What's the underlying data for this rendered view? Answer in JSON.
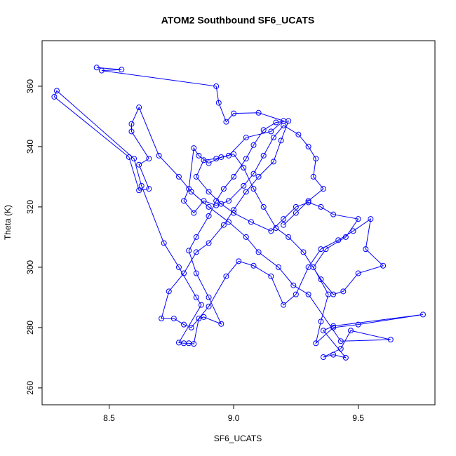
{
  "chart_data": {
    "type": "line",
    "title": "ATOM2 Southbound SF6_UCATS",
    "x_label": "SF6_UCATS",
    "y_label": "Theta (K)",
    "color": "#0000ff",
    "markers": true,
    "xlim": [
      8.231,
      9.808
    ],
    "ylim": [
      254.4,
      375.1
    ],
    "xticks": [
      8.5,
      {
        "value": 9,
        "label": "9.0"
      },
      9.5
    ],
    "yticks": [
      260,
      280,
      300,
      320,
      340,
      360
    ],
    "x": [
      8.45,
      8.55,
      8.47,
      8.93,
      8.94,
      8.97,
      9.0,
      9.1,
      9.2,
      9.15,
      9.05,
      8.98,
      8.93,
      8.88,
      8.85,
      8.9,
      8.95,
      9.0,
      9.07,
      9.15,
      9.2,
      9.25,
      9.3,
      9.35,
      9.4,
      9.5,
      9.45,
      9.37,
      9.32,
      9.38,
      9.35,
      9.33,
      9.4,
      9.5,
      9.76,
      9.4,
      9.36,
      9.45,
      9.4,
      9.36,
      9.43,
      9.47,
      9.63,
      9.43,
      9.3,
      9.24,
      9.18,
      9.1,
      9.05,
      8.98,
      8.9,
      8.83,
      8.78,
      8.7,
      8.62,
      8.59,
      8.59,
      8.66,
      8.62,
      8.66,
      8.62,
      8.58,
      8.28,
      8.29,
      8.6,
      8.63,
      8.72,
      8.78,
      8.85,
      8.87,
      8.78,
      8.8,
      8.82,
      8.84,
      8.86,
      8.88,
      8.95,
      8.9,
      8.85,
      8.82,
      8.85,
      8.9,
      8.93,
      8.96,
      9.0,
      9.05,
      9.08,
      9.12,
      9.17,
      9.22,
      9.19,
      9.16,
      9.1,
      9.05,
      9.0,
      8.96,
      8.9,
      8.85,
      8.8,
      8.74,
      8.71,
      8.76,
      8.8,
      8.83,
      8.9,
      8.97,
      9.02,
      9.08,
      9.15,
      9.2,
      9.25,
      9.3,
      9.35,
      9.42,
      9.48,
      9.55,
      9.53,
      9.6,
      9.5,
      9.44,
      9.4,
      9.35,
      9.28,
      9.22,
      9.17,
      9.12,
      9.08,
      9.04,
      9.0,
      8.95,
      8.9,
      8.86,
      8.84,
      8.82,
      8.8,
      8.84,
      8.88,
      8.93,
      8.98,
      9.04,
      9.08,
      9.12,
      9.16,
      9.2,
      9.26,
      9.3,
      9.33,
      9.32,
      9.36,
      9.3,
      9.25,
      9.2
    ],
    "values": [
      366.2,
      365.5,
      365.2,
      360,
      354.5,
      348.2,
      351,
      351.2,
      348.5,
      345,
      343,
      337,
      336,
      335.5,
      330,
      325,
      321,
      318,
      315,
      312,
      316,
      320,
      321.5,
      320,
      317.5,
      316,
      310,
      306,
      300,
      291,
      282,
      274.8,
      280,
      281,
      284.3,
      280.5,
      279,
      270,
      271,
      270.2,
      273,
      279,
      276,
      275.5,
      291,
      294,
      300,
      305,
      310,
      315,
      320,
      325,
      330,
      337,
      353,
      347.5,
      345,
      336,
      334,
      326,
      325.5,
      336.5,
      356.5,
      358.5,
      336,
      327,
      308,
      300,
      290,
      287.5,
      275,
      274.8,
      274.8,
      274.6,
      283,
      283.5,
      281.2,
      290,
      298,
      305.5,
      310,
      317,
      322,
      326,
      330,
      336,
      340.5,
      345.5,
      348,
      348.5,
      342,
      335,
      330,
      325,
      319,
      314,
      308,
      305,
      298,
      292,
      283,
      283,
      281,
      280,
      287,
      297,
      302,
      300.5,
      297,
      287.5,
      291,
      300,
      306,
      309,
      312,
      316,
      306,
      300.5,
      298,
      292,
      291,
      296,
      305,
      310,
      313,
      320,
      326,
      333,
      337.5,
      336.5,
      334.5,
      337,
      339.5,
      326,
      322,
      318,
      322,
      320.5,
      322,
      327,
      331,
      337,
      343,
      347,
      344,
      340,
      336,
      330,
      326,
      322,
      318,
      314
    ]
  }
}
